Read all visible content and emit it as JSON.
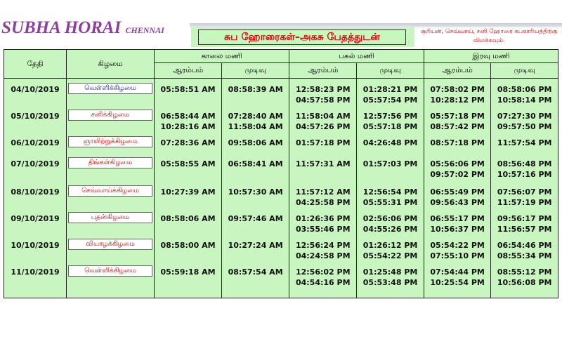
{
  "brand": {
    "title": "SUBHA HORAI",
    "city": "CHENNAI"
  },
  "title": "சுப ஹோரைகள்–அகசு பேதத்துடன்",
  "note": "சூரியன், செவ்வாய், சனி ஹோரை சுபகாரியத்திற்கு விலக்கவும்.",
  "headers": {
    "date": "தேதி",
    "day": "கிழமை",
    "morning": "காலை மணி",
    "afternoon": "பகல் மணி",
    "night": "இரவு மணி",
    "start": "ஆரம்பம்",
    "end": "முடிவு"
  },
  "colors": {
    "background": "#c9f5c0",
    "highlight_day": "#1a2aa0",
    "day": "#d01010"
  },
  "rows": [
    {
      "date": "04/10/2019",
      "day": "வெள்ளிக்கிழமை",
      "m_s": "05:58:51 AM",
      "m_e": "08:58:39 AM",
      "a_s": "12:58:23 PM\n04:57:58 PM",
      "a_e": "01:28:21 PM\n05:57:54 PM",
      "n_s": "07:58:02 PM\n10:28:12 PM",
      "n_e": "08:58:06 PM\n10:58:14 PM"
    },
    {
      "date": "05/10/2019",
      "day": "சனிக்கிழமை",
      "m_s": "06:58:44 AM\n10:28:16 AM",
      "m_e": "07:28:40 AM\n11:58:04 AM",
      "a_s": "11:58:04 AM\n04:57:26 PM",
      "a_e": "12:57:56 PM\n05:57:18 PM",
      "n_s": "05:57:18 PM\n08:57:42 PM",
      "n_e": "07:27:30 PM\n09:57:50 PM"
    },
    {
      "date": "06/10/2019",
      "day": "ஞாயிற்றுக்கிழமை",
      "m_s": "07:28:36 AM",
      "m_e": "09:58:06 AM",
      "a_s": "01:57:18 PM",
      "a_e": "04:26:48 PM",
      "n_s": "08:57:18 PM",
      "n_e": "11:57:54 PM"
    },
    {
      "date": "07/10/2019",
      "day": "திங்கள்கிழமை",
      "m_s": "05:58:55 AM",
      "m_e": "06:58:41 AM",
      "a_s": "11:57:31 AM",
      "a_e": "01:57:03 PM",
      "n_s": "05:56:06 PM\n09:57:02 PM",
      "n_e": "08:56:48 PM\n10:57:16 PM"
    },
    {
      "date": "08/10/2019",
      "day": "செவ்வாய்க்கிழமை",
      "m_s": "10:27:39 AM",
      "m_e": "10:57:30 AM",
      "a_s": "11:57:12 AM\n04:25:58 PM",
      "a_e": "12:56:54 PM\n05:55:31 PM",
      "n_s": "06:55:49 PM\n09:56:43 PM",
      "n_e": "07:56:07 PM\n11:57:19 PM"
    },
    {
      "date": "09/10/2019",
      "day": "புதன்கிழமை",
      "m_s": "08:58:06 AM",
      "m_e": "09:57:46 AM",
      "a_s": "01:26:36 PM\n03:55:46 PM",
      "a_e": "02:56:06 PM\n04:55:26 PM",
      "n_s": "06:55:17 PM\n10:56:37 PM",
      "n_e": "09:56:17 PM\n11:56:57 PM"
    },
    {
      "date": "10/10/2019",
      "day": "வியாழக்கிழமை",
      "m_s": "08:58:00 AM",
      "m_e": "10:27:24 AM",
      "a_s": "12:56:24 PM\n04:24:58 PM",
      "a_e": "01:26:12 PM\n05:54:22 PM",
      "n_s": "05:54:22 PM\n07:55:10 PM",
      "n_e": "06:54:46 PM\n08:55:34 PM"
    },
    {
      "date": "11/10/2019",
      "day": "வெள்ளிக்கிழமை",
      "m_s": "05:59:18 AM",
      "m_e": "08:57:54 AM",
      "a_s": "12:56:02 PM\n04:54:16 PM",
      "a_e": "01:25:48 PM\n05:53:48 PM",
      "n_s": "07:54:44 PM\n10:25:54 PM",
      "n_e": "08:55:12 PM\n10:56:08 PM"
    }
  ]
}
